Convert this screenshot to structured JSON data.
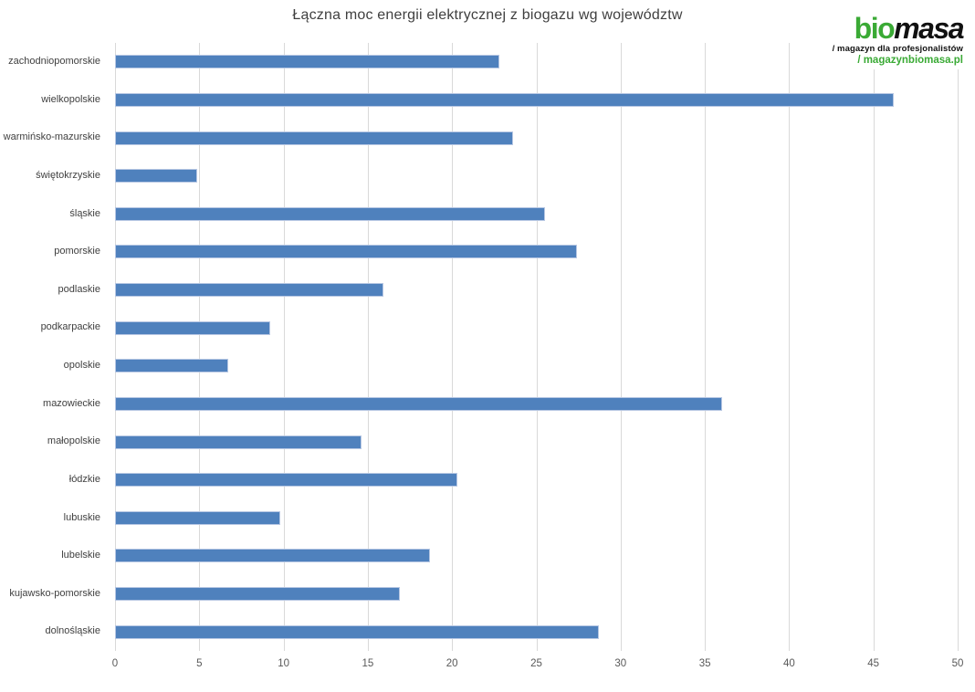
{
  "logo": {
    "bio": "bio",
    "masa": "masa",
    "subtitle": "/ magazyn dla profesjonalistów",
    "url": "/ magazynbiomasa.pl",
    "green": "#3aaa35",
    "black": "#111111"
  },
  "chart_data": {
    "type": "bar",
    "orientation": "horizontal",
    "title": "Łączna moc energii elektrycznej z biogazu wg województw",
    "categories": [
      "zachodniopomorskie",
      "wielkopolskie",
      "warmińsko-mazurskie",
      "świętokrzyskie",
      "śląskie",
      "pomorskie",
      "podlaskie",
      "podkarpackie",
      "opolskie",
      "mazowieckie",
      "małopolskie",
      "łódzkie",
      "lubuskie",
      "lubelskie",
      "kujawsko-pomorskie",
      "dolnośląskie"
    ],
    "values": [
      22.8,
      46.2,
      23.6,
      4.9,
      25.5,
      27.4,
      15.9,
      9.2,
      6.7,
      36.0,
      14.6,
      20.3,
      9.8,
      18.7,
      16.9,
      28.7
    ],
    "xlabel": "",
    "ylabel": "",
    "xlim": [
      0,
      50
    ],
    "xticks": [
      0,
      5,
      10,
      15,
      20,
      25,
      30,
      35,
      40,
      45,
      50
    ],
    "grid": "vertical-only",
    "legend": "none",
    "bar_color": "#4f81bd",
    "bar_border_color": "#b7c7e3",
    "gridline_color": "#d9d9d9",
    "title_color": "#3f3f3f",
    "tick_label_color": "#595959",
    "category_label_color": "#404040"
  }
}
